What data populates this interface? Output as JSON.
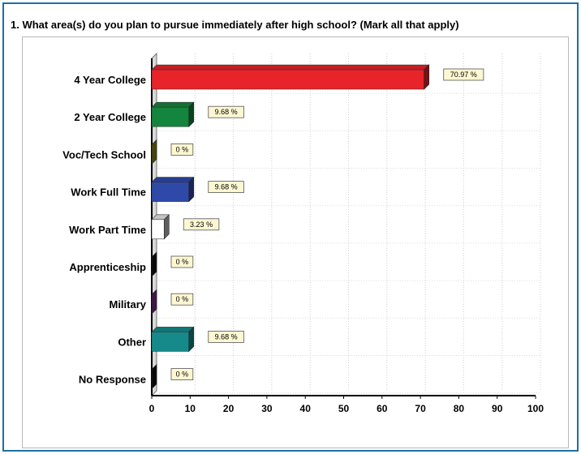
{
  "question": {
    "text": "1. What area(s) do you plan to pursue immediately after high school? (Mark all that apply)"
  },
  "chart_data": {
    "type": "bar",
    "orientation": "horizontal",
    "title": "1. What area(s) do you plan to pursue immediately after high school? (Mark all that apply)",
    "categories": [
      "4 Year College",
      "2 Year College",
      "Voc/Tech School",
      "Work Full Time",
      "Work Part Time",
      "Apprenticeship",
      "Military",
      "Other",
      "No Response"
    ],
    "values": [
      70.97,
      9.68,
      0,
      9.68,
      3.23,
      0,
      0,
      9.68,
      0
    ],
    "value_labels": [
      "70.97 %",
      "9.68 %",
      "0 %",
      "9.68 %",
      "3.23 %",
      "0 %",
      "0 %",
      "9.68 %",
      "0 %"
    ],
    "colors": [
      "#e8232a",
      "#13853c",
      "#8a8a1c",
      "#2f49a8",
      "#ffffff",
      "#111111",
      "#7b2b8e",
      "#168a8a",
      "#111111"
    ],
    "xlim": [
      0,
      100
    ],
    "xticks": [
      "0",
      "10",
      "20",
      "30",
      "40",
      "50",
      "60",
      "70",
      "80",
      "90",
      "100"
    ],
    "grid": true,
    "legend": "none"
  }
}
